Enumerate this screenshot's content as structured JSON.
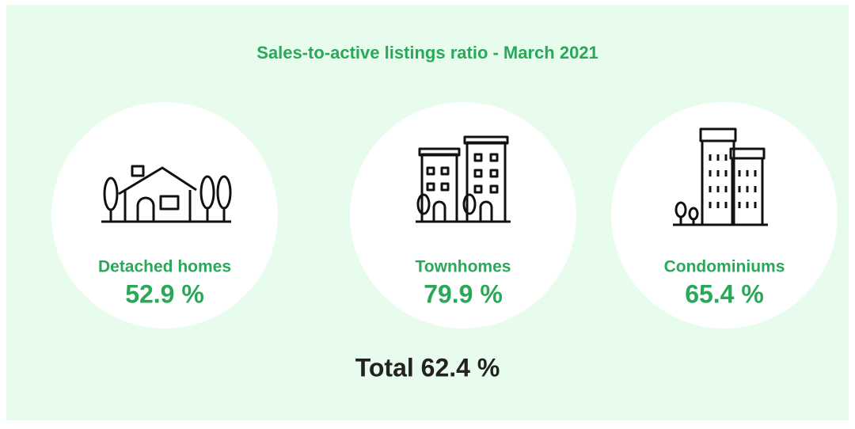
{
  "title": "Sales-to-active listings ratio - March 2021",
  "items": [
    {
      "label": "Detached homes",
      "value": "52.9 %"
    },
    {
      "label": "Townhomes",
      "value": "79.9 %"
    },
    {
      "label": "Condominiums",
      "value": "65.4 %"
    }
  ],
  "total": "Total 62.4 %"
}
